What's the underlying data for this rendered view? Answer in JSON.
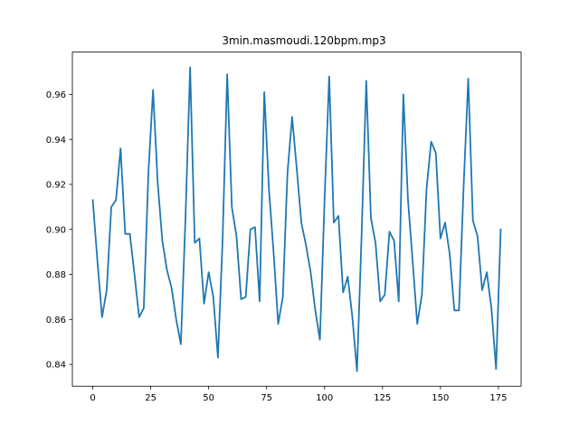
{
  "chart_data": {
    "type": "line",
    "title": "3min.masmoudi.120bpm.mp3",
    "xlabel": "",
    "ylabel": "",
    "xlim": [
      -8.8,
      184.8
    ],
    "ylim": [
      0.8303,
      0.9788
    ],
    "xticks": [
      0,
      25,
      50,
      75,
      100,
      125,
      150,
      175
    ],
    "yticks": [
      0.84,
      0.86,
      0.88,
      0.9,
      0.92,
      0.94,
      0.96
    ],
    "grid": false,
    "line_color": "#1f77b4",
    "series": [
      {
        "x": [
          0,
          2,
          4,
          6,
          8,
          10,
          12,
          14,
          16,
          18,
          20,
          22,
          24,
          26,
          28,
          30,
          32,
          34,
          36,
          38,
          40,
          42,
          44,
          46,
          48,
          50,
          52,
          54,
          56,
          58,
          60,
          62,
          64,
          66,
          68,
          70,
          72,
          74,
          76,
          78,
          80,
          82,
          84,
          86,
          88,
          90,
          92,
          94,
          96,
          98,
          100,
          102,
          104,
          106,
          108,
          110,
          112,
          114,
          116,
          118,
          120,
          122,
          124,
          126,
          128,
          130,
          132,
          134,
          136,
          138,
          140,
          142,
          144,
          146,
          148,
          150,
          152,
          154,
          156,
          158,
          160,
          162,
          164,
          166,
          168,
          170,
          172,
          174,
          176
        ],
        "y": [
          0.913,
          0.886,
          0.861,
          0.873,
          0.91,
          0.913,
          0.936,
          0.898,
          0.898,
          0.88,
          0.861,
          0.865,
          0.925,
          0.962,
          0.921,
          0.895,
          0.882,
          0.874,
          0.86,
          0.849,
          0.905,
          0.972,
          0.894,
          0.896,
          0.867,
          0.881,
          0.87,
          0.843,
          0.895,
          0.969,
          0.91,
          0.897,
          0.869,
          0.87,
          0.9,
          0.901,
          0.868,
          0.961,
          0.918,
          0.89,
          0.858,
          0.87,
          0.925,
          0.95,
          0.927,
          0.903,
          0.893,
          0.881,
          0.864,
          0.851,
          0.913,
          0.968,
          0.903,
          0.906,
          0.872,
          0.879,
          0.861,
          0.837,
          0.898,
          0.966,
          0.905,
          0.894,
          0.868,
          0.871,
          0.899,
          0.895,
          0.868,
          0.96,
          0.913,
          0.886,
          0.858,
          0.871,
          0.918,
          0.939,
          0.934,
          0.896,
          0.903,
          0.889,
          0.864,
          0.864,
          0.919,
          0.967,
          0.904,
          0.897,
          0.873,
          0.881,
          0.865,
          0.838,
          0.9
        ]
      }
    ]
  }
}
